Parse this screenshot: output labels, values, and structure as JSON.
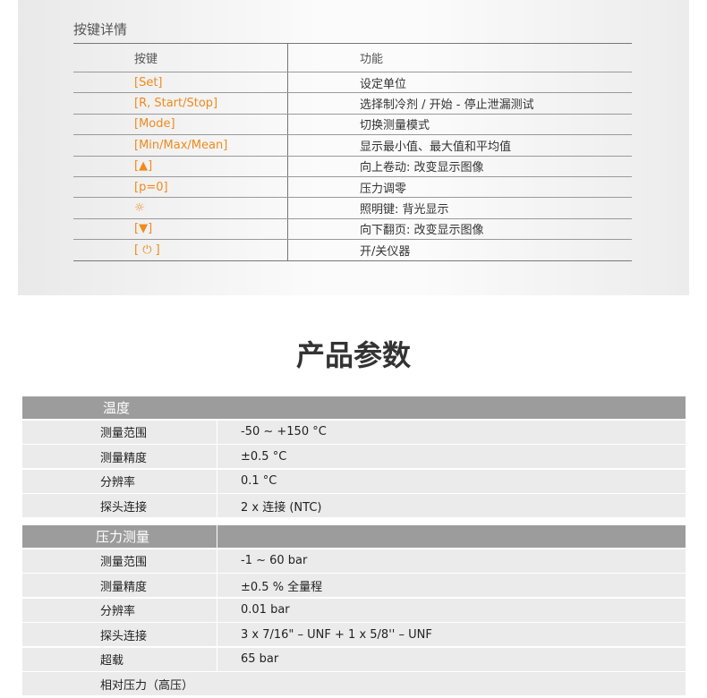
{
  "keys": {
    "title": "按键详情",
    "header": {
      "key": "按键",
      "function": "功能"
    },
    "rows": [
      {
        "key": "[Set]",
        "function": "设定单位"
      },
      {
        "key": "[R, Start/Stop]",
        "function": "选择制冷剂 / 开始 - 停止泄漏测试"
      },
      {
        "key": "[Mode]",
        "function": "切换测量模式"
      },
      {
        "key": "[Min/Max/Mean]",
        "function": "显示最小值、最大值和平均值"
      },
      {
        "key": "[▲]",
        "function": "向上卷动: 改变显示图像"
      },
      {
        "key": "[p=0]",
        "function": "压力调零"
      },
      {
        "key": "☼",
        "function": "照明键: 背光显示"
      },
      {
        "key": "[▼]",
        "function": "向下翻页: 改变显示图像"
      },
      {
        "key": "[ ⏻ ]",
        "function": "开/关仪器"
      }
    ],
    "accent": "#f08a1c"
  },
  "params": {
    "title": "产品参数",
    "temperature": {
      "header": "温度",
      "rows": [
        {
          "label": "测量范围",
          "value": "-50 ~ +150 °C"
        },
        {
          "label": "测量精度",
          "value": "±0.5 °C"
        },
        {
          "label": "分辨率",
          "value": "0.1 °C"
        },
        {
          "label": "探头连接",
          "value": "2 x 连接 (NTC)"
        }
      ]
    },
    "pressure": {
      "header": "压力测量",
      "rows": [
        {
          "label": "测量范围",
          "value": "-1 ~ 60 bar"
        },
        {
          "label": "测量精度",
          "value": "±0.5 % 全量程"
        },
        {
          "label": "分辨率",
          "value": "0.01 bar"
        },
        {
          "label": "探头连接",
          "value": "3 x 7/16\" – UNF + 1 x 5/8'' – UNF"
        },
        {
          "label": "超载",
          "value": "65 bar"
        },
        {
          "label": "相对压力（高压）",
          "value": ""
        }
      ]
    }
  }
}
